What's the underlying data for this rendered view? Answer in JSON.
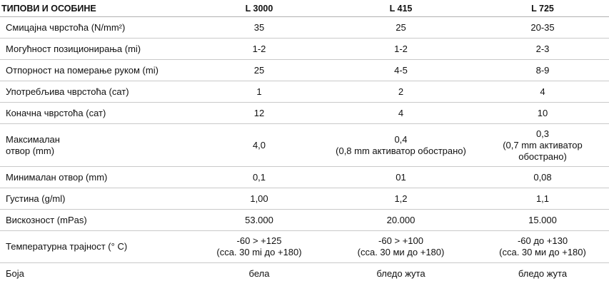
{
  "table": {
    "header": [
      "ТИПОВИ И ОСОБИНЕ",
      "L 3000",
      "L 415",
      "L 725"
    ],
    "rows": [
      {
        "label": [
          "Смицајна чврстоћа (N/mm²)"
        ],
        "cells": [
          [
            "35"
          ],
          [
            "25"
          ],
          [
            "20-35"
          ]
        ]
      },
      {
        "label": [
          "Могућност позиционирања (mi)"
        ],
        "cells": [
          [
            "1-2"
          ],
          [
            "1-2"
          ],
          [
            "2-3"
          ]
        ]
      },
      {
        "label": [
          "Отпорност на померање руком (mi)"
        ],
        "cells": [
          [
            "25"
          ],
          [
            "4-5"
          ],
          [
            "8-9"
          ]
        ]
      },
      {
        "label": [
          "Употребљива чврстоћа (сат)"
        ],
        "cells": [
          [
            "1"
          ],
          [
            "2"
          ],
          [
            "4"
          ]
        ]
      },
      {
        "label": [
          "Коначна чврстоћа (сат)"
        ],
        "cells": [
          [
            "12"
          ],
          [
            "4"
          ],
          [
            "10"
          ]
        ]
      },
      {
        "label": [
          "Максималан",
          "отвор (mm)"
        ],
        "cells": [
          [
            "4,0"
          ],
          [
            "0,4",
            "(0,8 mm активатор обострано)"
          ],
          [
            "0,3",
            "(0,7 mm активатор",
            "обострано)"
          ]
        ]
      },
      {
        "label": [
          "Минималан отвор (mm)"
        ],
        "cells": [
          [
            "0,1"
          ],
          [
            "01"
          ],
          [
            "0,08"
          ]
        ]
      },
      {
        "label": [
          "Густина (g/ml)"
        ],
        "cells": [
          [
            "1,00"
          ],
          [
            "1,2"
          ],
          [
            "1,1"
          ]
        ]
      },
      {
        "label": [
          "Вискозност (mPas)"
        ],
        "cells": [
          [
            "53.000"
          ],
          [
            "20.000"
          ],
          [
            "15.000"
          ]
        ]
      },
      {
        "label": [
          "Температурна трајност (° C)"
        ],
        "cells": [
          [
            "-60 > +125",
            "(сса. 30 mi до +180)"
          ],
          [
            "-60 > +100",
            "(сса. 30 ми до +180)"
          ],
          [
            "-60 до +130",
            "(сса. 30 ми до +180)"
          ]
        ]
      },
      {
        "label": [
          "Боја"
        ],
        "cells": [
          [
            "бела"
          ],
          [
            "бледо жута"
          ],
          [
            "бледо жута"
          ]
        ]
      }
    ]
  }
}
